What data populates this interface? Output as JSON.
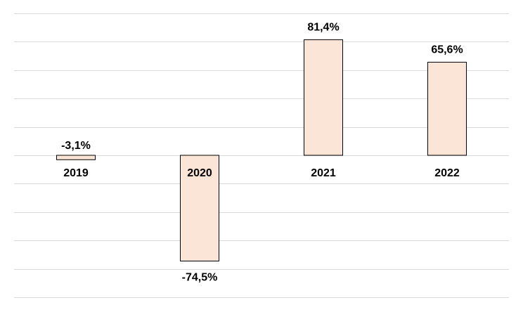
{
  "chart_data": {
    "type": "bar",
    "title": "",
    "xlabel": "",
    "ylabel": "",
    "categories": [
      "2019",
      "2020",
      "2021",
      "2022"
    ],
    "values": [
      -3.1,
      -74.5,
      81.4,
      65.6
    ],
    "value_labels": [
      "-3,1%",
      "-74,5%",
      "81,4%",
      "65,6%"
    ],
    "ylim": [
      -100,
      100
    ],
    "grid_step": 20,
    "grid": true,
    "legend": "none",
    "colors": {
      "bar_fill": "#fbe5d6",
      "bar_stroke": "#000000",
      "grid": "#d9d9d9"
    }
  }
}
